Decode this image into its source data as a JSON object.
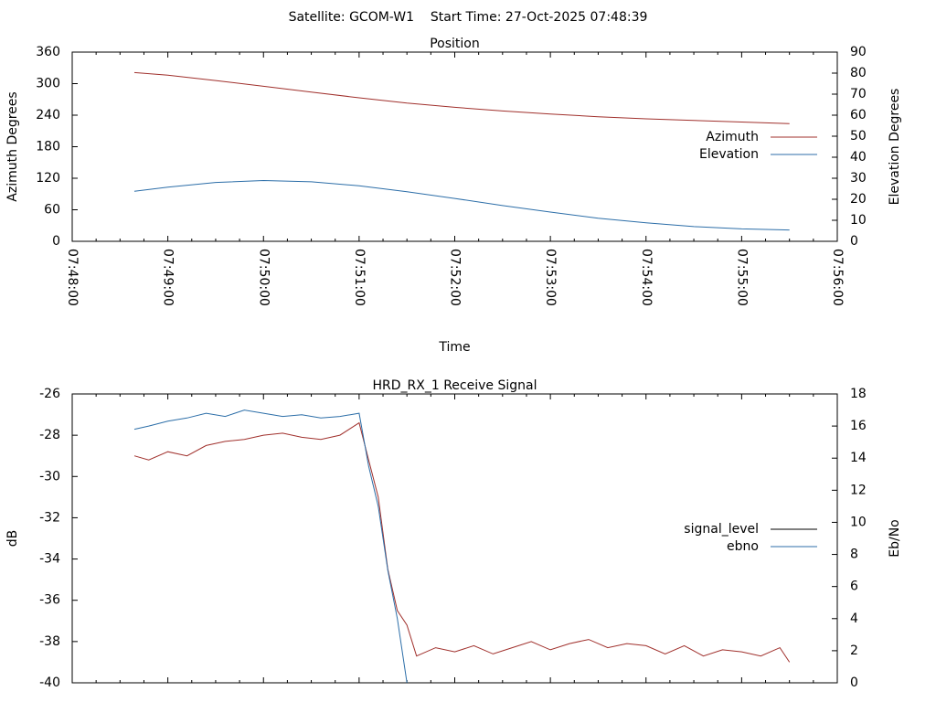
{
  "header": "Satellite: GCOM-W1    Start Time: 27-Oct-2025 07:48:39",
  "chart_data": [
    {
      "type": "line",
      "title": "Position",
      "xlabel": "Time",
      "ylabel": "Azimuth Degrees",
      "y2label": "Elevation Degrees",
      "x_ticks": [
        "07:48:00",
        "07:49:00",
        "07:50:00",
        "07:51:00",
        "07:52:00",
        "07:53:00",
        "07:54:00",
        "07:55:00",
        "07:56:00"
      ],
      "xlim_minutes": [
        0,
        8
      ],
      "ylim": [
        0,
        360
      ],
      "y_ticks": [
        0,
        60,
        120,
        180,
        240,
        300,
        360
      ],
      "y2lim": [
        0,
        90
      ],
      "y2_ticks": [
        0,
        10,
        20,
        30,
        40,
        50,
        60,
        70,
        80,
        90
      ],
      "legend_position": "right",
      "x_minutes": [
        0.65,
        1.0,
        1.5,
        2.0,
        2.5,
        3.0,
        3.5,
        4.0,
        4.5,
        5.0,
        5.5,
        6.0,
        6.5,
        7.0,
        7.5
      ],
      "series": [
        {
          "name": "Azimuth",
          "axis": "y",
          "color": "#a0302c",
          "values": [
            321,
            316,
            306,
            295,
            284,
            273,
            263,
            255,
            248,
            242,
            237,
            233,
            230,
            227,
            224
          ]
        },
        {
          "name": "Elevation",
          "axis": "y2",
          "color": "#2c6ea8",
          "values": [
            23.8,
            25.8,
            28.0,
            28.9,
            28.3,
            26.4,
            23.6,
            20.4,
            17.0,
            13.9,
            11.0,
            8.8,
            7.0,
            5.9,
            5.4
          ]
        }
      ]
    },
    {
      "type": "line",
      "title": "HRD_RX_1 Receive Signal",
      "ylabel": "dB",
      "y2label": "Eb/No",
      "xlim_minutes": [
        0,
        8
      ],
      "ylim": [
        -40,
        -26
      ],
      "y_ticks": [
        -40,
        -38,
        -36,
        -34,
        -32,
        -30,
        -28,
        -26
      ],
      "y2lim": [
        0,
        18
      ],
      "y2_ticks": [
        0,
        2,
        4,
        6,
        8,
        10,
        12,
        14,
        16,
        18
      ],
      "legend_position": "right",
      "x_minutes": [
        0.65,
        0.8,
        1.0,
        1.2,
        1.4,
        1.6,
        1.8,
        2.0,
        2.2,
        2.4,
        2.6,
        2.8,
        3.0,
        3.1,
        3.2,
        3.3,
        3.4,
        3.5,
        3.6,
        3.8,
        4.0,
        4.2,
        4.4,
        4.6,
        4.8,
        5.0,
        5.2,
        5.4,
        5.6,
        5.8,
        6.0,
        6.2,
        6.4,
        6.6,
        6.8,
        7.0,
        7.2,
        7.4,
        7.5
      ],
      "series": [
        {
          "name": "signal_level",
          "axis": "y",
          "color": "#a0302c",
          "legend_color": "#000000",
          "values": [
            -29.0,
            -29.2,
            -28.8,
            -29.0,
            -28.5,
            -28.3,
            -28.2,
            -28.0,
            -27.9,
            -28.1,
            -28.2,
            -28.0,
            -27.4,
            -29.2,
            -31.0,
            -34.5,
            -36.5,
            -37.2,
            -38.7,
            -38.3,
            -38.5,
            -38.2,
            -38.6,
            -38.3,
            -38.0,
            -38.4,
            -38.1,
            -37.9,
            -38.3,
            -38.1,
            -38.2,
            -38.6,
            -38.2,
            -38.7,
            -38.4,
            -38.5,
            -38.7,
            -38.3,
            -39.0
          ]
        },
        {
          "name": "ebno",
          "axis": "y2",
          "color": "#2c6ea8",
          "values": [
            15.8,
            16.0,
            16.3,
            16.5,
            16.8,
            16.6,
            17.0,
            16.8,
            16.6,
            16.7,
            16.5,
            16.6,
            16.8,
            13.5,
            11.0,
            7.0,
            4.0,
            0.0,
            null,
            null,
            null,
            null,
            null,
            null,
            null,
            null,
            null,
            null,
            null,
            null,
            null,
            null,
            null,
            null,
            null,
            null,
            null,
            null,
            null
          ]
        }
      ]
    }
  ]
}
